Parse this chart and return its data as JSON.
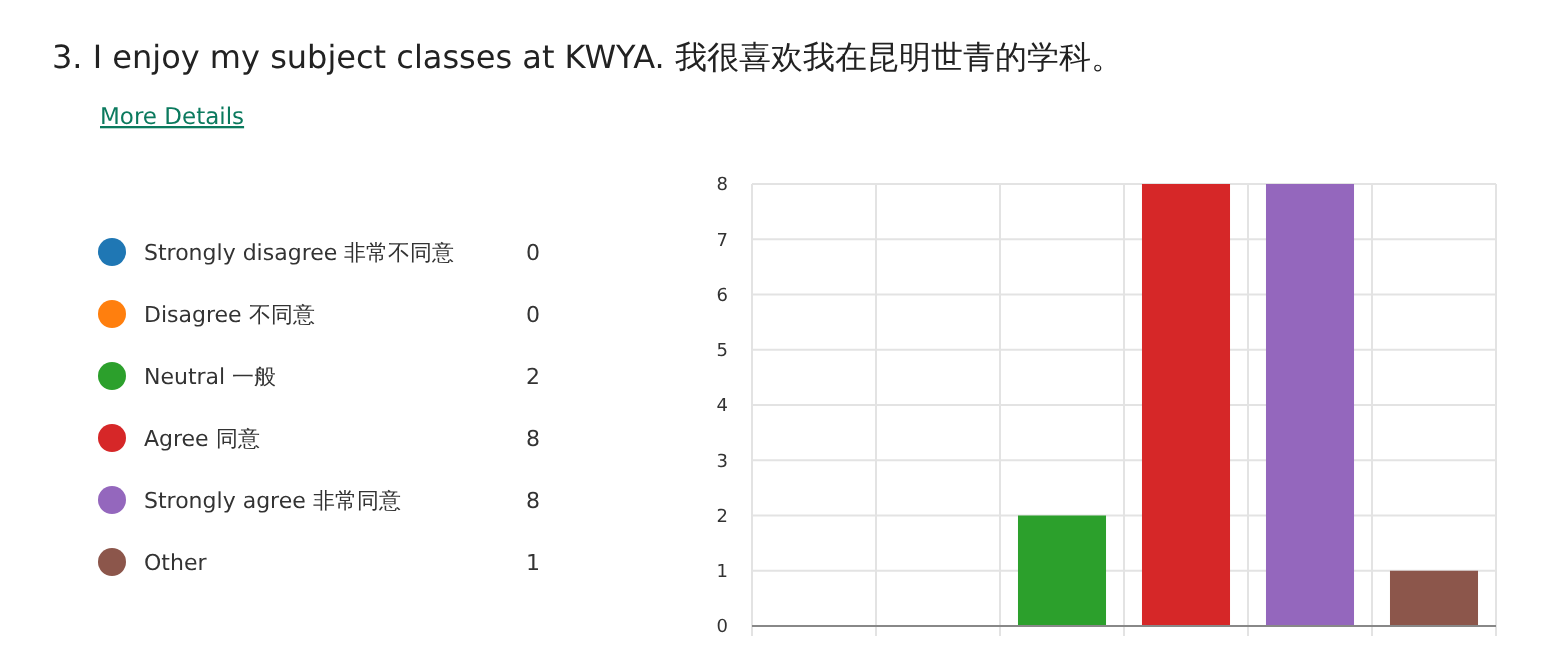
{
  "chart_data": {
    "type": "bar",
    "title": "3.  I enjoy my subject classes at KWYA. 我很喜欢我在昆明世青的学科。",
    "annotations": [
      "More Details",
      "0",
      "0",
      "2",
      "8",
      "8",
      "1"
    ],
    "categories": [
      null,
      null,
      null,
      null,
      null,
      null
    ],
    "series": [
      {
        "name": "Strongly disagree 非常不同意",
        "color": "#1f77b4",
        "values": [
          0,
          null,
          null,
          null,
          null,
          null
        ]
      },
      {
        "name": "Disagree 不同意",
        "color": "#ff7f0e",
        "values": [
          null,
          0,
          null,
          null,
          null,
          null
        ]
      },
      {
        "name": "Neutral 一般",
        "color": "#2ca02c",
        "values": [
          null,
          null,
          2,
          null,
          null,
          null
        ]
      },
      {
        "name": "Agree 同意",
        "color": "#d62728",
        "values": [
          null,
          null,
          null,
          8,
          null,
          null
        ]
      },
      {
        "name": "Strongly agree 非常同意",
        "color": "#9467bd",
        "values": [
          null,
          null,
          null,
          null,
          8,
          null
        ]
      },
      {
        "name": "Other",
        "color": "#8c564b",
        "values": [
          null,
          null,
          null,
          null,
          null,
          1
        ]
      }
    ],
    "ylim": [
      0,
      8
    ],
    "yticks": [
      0,
      1,
      2,
      3,
      4,
      5,
      6,
      7,
      8
    ],
    "grid": true,
    "legend": "left",
    "tick_labels": "y"
  }
}
